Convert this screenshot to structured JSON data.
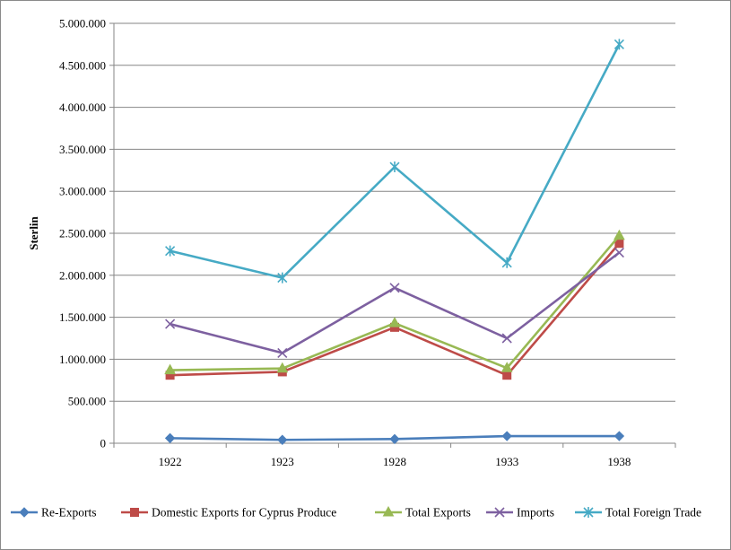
{
  "chart_data": {
    "type": "line",
    "categories": [
      "1922",
      "1923",
      "1928",
      "1933",
      "1938"
    ],
    "ylabel": "Sterlin",
    "xlabel": "",
    "ylim": [
      0,
      5000000
    ],
    "yticks": [
      0,
      500000,
      1000000,
      1500000,
      2000000,
      2500000,
      3000000,
      3500000,
      4000000,
      4500000,
      5000000
    ],
    "ytick_labels": [
      "0",
      "500.000",
      "1.000.000",
      "1.500.000",
      "2.000.000",
      "2.500.000",
      "3.000.000",
      "3.500.000",
      "4.000.000",
      "4.500.000",
      "5.000.000"
    ],
    "grid": true,
    "legend_position": "bottom",
    "series": [
      {
        "name": "Re-Exports",
        "values": [
          60000,
          40000,
          50000,
          85000,
          85000
        ],
        "color": "#4a7ebb",
        "marker": "diamond"
      },
      {
        "name": "Domestic Exports for Cyprus Produce",
        "values": [
          810000,
          850000,
          1380000,
          810000,
          2380000
        ],
        "color": "#be4b48",
        "marker": "square"
      },
      {
        "name": "Total Exports",
        "values": [
          870000,
          890000,
          1430000,
          895000,
          2470000
        ],
        "color": "#98b954",
        "marker": "triangle"
      },
      {
        "name": "Imports",
        "values": [
          1420000,
          1075000,
          1850000,
          1250000,
          2270000
        ],
        "color": "#7d60a0",
        "marker": "x"
      },
      {
        "name": "Total Foreign Trade",
        "values": [
          2290000,
          1970000,
          3290000,
          2150000,
          4750000
        ],
        "color": "#46aac5",
        "marker": "star"
      }
    ]
  }
}
